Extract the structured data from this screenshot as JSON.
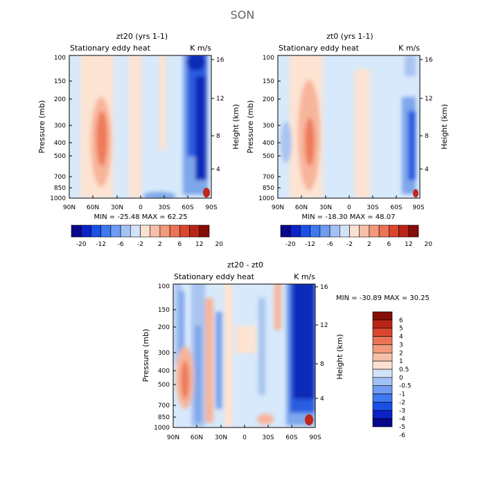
{
  "figure": {
    "title": "SON",
    "colors": {
      "panel_bg": "#d7e9fb",
      "axis": "#000000",
      "warm_light": "#fde3d2",
      "warm_mid": "#f7b59b",
      "warm_strong": "#ee7a5a",
      "cool_light": "#cfe0f6",
      "cool_mid": "#7ea6ea",
      "cool_strong": "#2a5de0",
      "cool_deep": "#0a2bb8"
    }
  },
  "chart_data": [
    {
      "type": "heatmap",
      "id": "zt20",
      "title": "zt20 (yrs 1-1)",
      "subtitle_left": "Stationary eddy heat",
      "subtitle_right": "K m/s",
      "xlabel": "",
      "ylabel": "Pressure (mb)",
      "ylabel_right": "Height (km)",
      "xticks": [
        "90N",
        "60N",
        "30N",
        "0",
        "30S",
        "60S",
        "90S"
      ],
      "xlim": [
        90,
        -90
      ],
      "yticks": [
        1000,
        850,
        700,
        500,
        400,
        300,
        200,
        150,
        100
      ],
      "ylim": [
        1000,
        100
      ],
      "height_ticks": [
        4,
        8,
        12,
        16
      ],
      "stats_text": "MIN = -25.48   MAX =  62.25",
      "min": -25.48,
      "max": 62.25,
      "colorbar": {
        "orientation": "horizontal",
        "colors": [
          "#08088a",
          "#0b22c6",
          "#1a4fe6",
          "#3f78f0",
          "#6f9bf2",
          "#a2c1f5",
          "#d2e2f8",
          "#fbe1d2",
          "#f7bfa7",
          "#f29a7c",
          "#eb7356",
          "#da4630",
          "#b82517",
          "#860d08"
        ],
        "labels": [
          "-20",
          "-12",
          "-6",
          "-2",
          "2",
          "6",
          "12",
          "20"
        ]
      }
    },
    {
      "type": "heatmap",
      "id": "zt0",
      "title": "zt0 (yrs 1-1)",
      "subtitle_left": "Stationary eddy heat",
      "subtitle_right": "K m/s",
      "xlabel": "",
      "ylabel": "Pressure (mb)",
      "ylabel_right": "Height (km)",
      "xticks": [
        "90N",
        "60N",
        "30N",
        "0",
        "30S",
        "60S",
        "90S"
      ],
      "xlim": [
        90,
        -90
      ],
      "yticks": [
        1000,
        850,
        700,
        500,
        400,
        300,
        200,
        150,
        100
      ],
      "ylim": [
        1000,
        100
      ],
      "height_ticks": [
        4,
        8,
        12,
        16
      ],
      "stats_text": "MIN = -18.30   MAX =  48.07",
      "min": -18.3,
      "max": 48.07,
      "colorbar": {
        "orientation": "horizontal",
        "colors": [
          "#08088a",
          "#0b22c6",
          "#1a4fe6",
          "#3f78f0",
          "#6f9bf2",
          "#a2c1f5",
          "#d2e2f8",
          "#fbe1d2",
          "#f7bfa7",
          "#f29a7c",
          "#eb7356",
          "#da4630",
          "#b82517",
          "#860d08"
        ],
        "labels": [
          "-20",
          "-12",
          "-6",
          "-2",
          "2",
          "6",
          "12",
          "20"
        ]
      }
    },
    {
      "type": "heatmap",
      "id": "diff",
      "title": "zt20 - zt0",
      "subtitle_left": "Stationary eddy heat",
      "subtitle_right": "K m/s",
      "xlabel": "",
      "ylabel": "Pressure (mb)",
      "ylabel_right": "Height (km)",
      "xticks": [
        "90N",
        "60N",
        "30N",
        "0",
        "30S",
        "60S",
        "90S"
      ],
      "xlim": [
        90,
        -90
      ],
      "yticks": [
        1000,
        850,
        700,
        500,
        400,
        300,
        200,
        150,
        100
      ],
      "ylim": [
        1000,
        100
      ],
      "height_ticks": [
        4,
        8,
        12,
        16
      ],
      "stats_text": "MIN = -30.89   MAX =  30.25",
      "min": -30.89,
      "max": 30.25,
      "colorbar": {
        "orientation": "vertical",
        "colors": [
          "#860d08",
          "#b82517",
          "#da4630",
          "#eb7356",
          "#f29a7c",
          "#f7bfa7",
          "#fbe1d2",
          "#d2e2f8",
          "#a2c1f5",
          "#6f9bf2",
          "#3f78f0",
          "#1a4fe6",
          "#0b22c6",
          "#08088a"
        ],
        "labels": [
          "6",
          "5",
          "4",
          "3",
          "2",
          "1",
          "0.5",
          "0",
          "-0.5",
          "-1",
          "-2",
          "-3",
          "-4",
          "-5",
          "-6"
        ]
      }
    }
  ]
}
